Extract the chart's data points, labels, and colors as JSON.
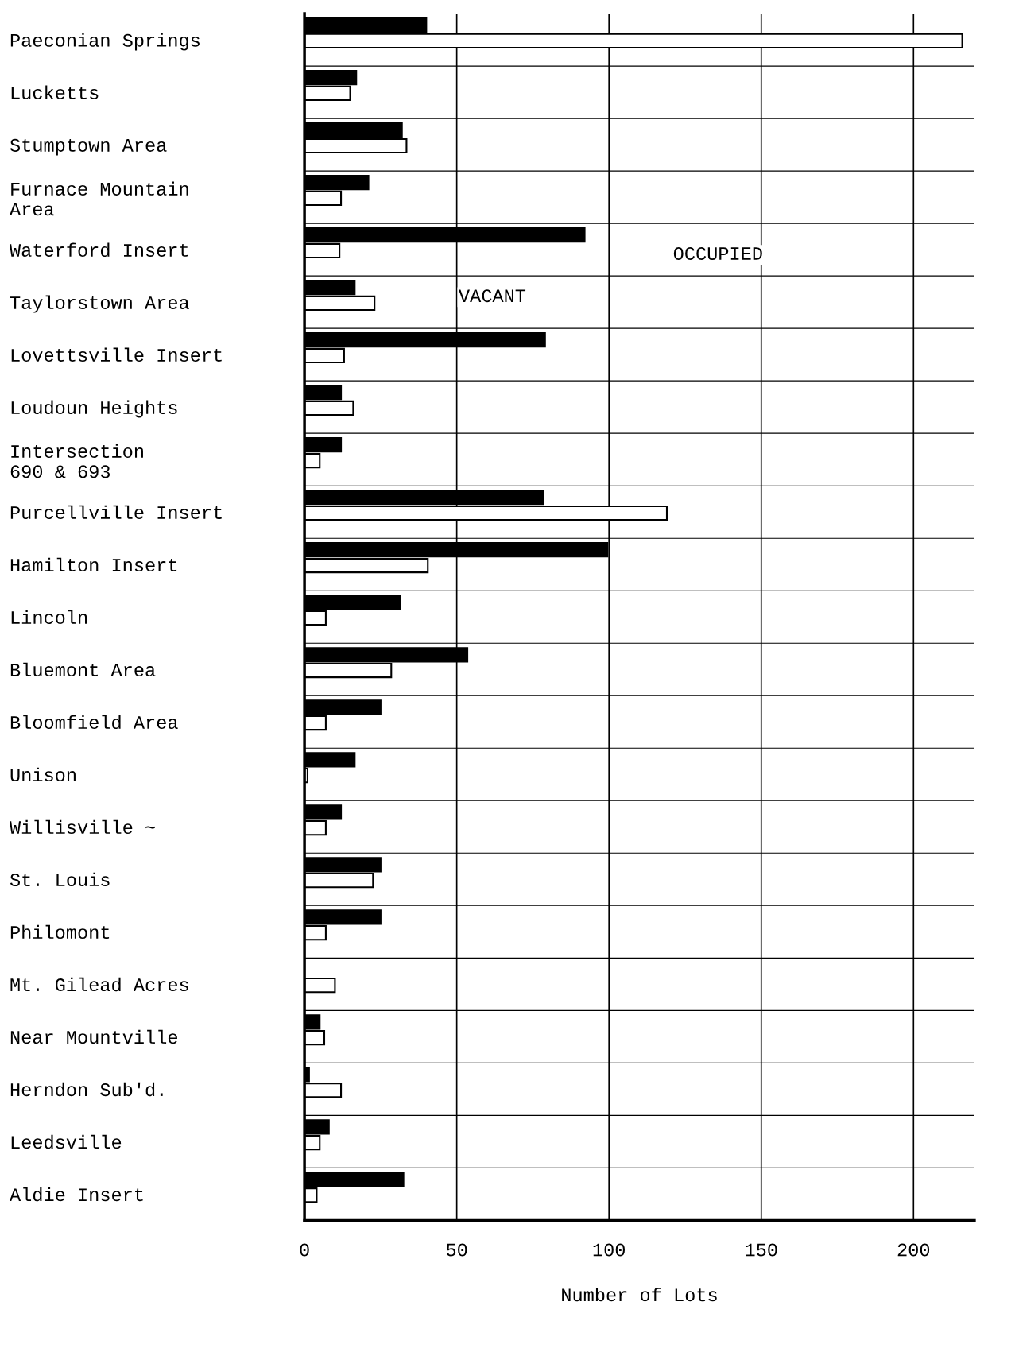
{
  "chart_data": {
    "type": "bar",
    "orientation": "horizontal",
    "categories": [
      "Paeconian Springs",
      "Lucketts",
      "Stumptown Area",
      "Furnace Mountain\nArea",
      "Waterford Insert",
      "Taylorstown Area",
      "Lovettsville Insert",
      "Loudoun Heights",
      "Intersection\n690 & 693",
      "Purcellville Insert",
      "Hamilton Insert",
      "Lincoln",
      "Bluemont Area",
      "Bloomfield Area",
      "Unison",
      "Willisville ~",
      "St. Louis",
      "Philomont",
      "Mt. Gilead Acres",
      "Near Mountville",
      "Herndon Sub'd.",
      "Leedsville",
      "Aldie Insert"
    ],
    "series": [
      {
        "color": "#000000",
        "values": [
          40,
          17,
          32,
          21,
          92,
          16.5,
          79,
          12,
          12,
          78.5,
          99.5,
          31.5,
          53.5,
          25,
          16.5,
          12,
          25,
          25,
          null,
          5,
          1.5,
          8,
          32.5
        ]
      },
      {
        "color": "#ffffff",
        "values": [
          216,
          15,
          33.5,
          12,
          11.5,
          23,
          13,
          16,
          5,
          119,
          40.5,
          7,
          28.5,
          7,
          1,
          7,
          22.5,
          7,
          10,
          6.5,
          12,
          5,
          4
        ]
      }
    ],
    "xlabel": "Number of Lots",
    "xlim": [
      0,
      220
    ],
    "xticks": [
      0,
      50,
      100,
      150,
      200
    ],
    "grid": true,
    "annotations": [
      "OCCUPIED",
      "VACANT"
    ]
  }
}
